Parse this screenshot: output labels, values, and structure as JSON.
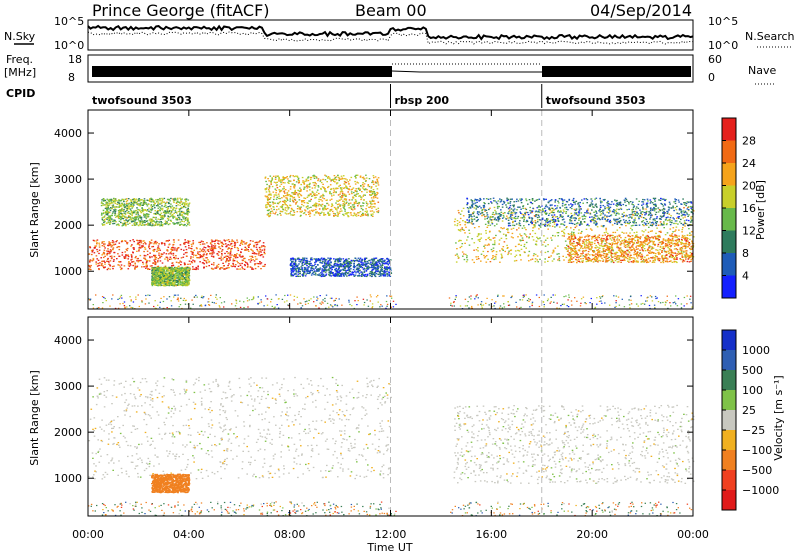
{
  "header": {
    "station": "Prince George (fitACF)",
    "beam": "Beam 00",
    "date": "04/Sep/2014"
  },
  "panel_labels": {
    "nsky": "N.Sky",
    "freq_line1": "Freq.",
    "freq_line2": "[MHz]",
    "cpid": "CPID",
    "nsearch": "N.Search",
    "nave": "Nave",
    "noise_ticks_left": [
      "10^5",
      "10^0"
    ],
    "noise_ticks_right": [
      "10^5",
      "10^0"
    ],
    "freq_ticks": [
      "18",
      "8"
    ],
    "nave_ticks": [
      "60",
      "0"
    ]
  },
  "cpid_segments": [
    {
      "label": "twofsound 3503",
      "start_hour": 0.0
    },
    {
      "label": "rbsp 200",
      "start_hour": 12.0
    },
    {
      "label": "twofsound 3503",
      "start_hour": 18.0
    }
  ],
  "axes": {
    "ylabel": "Slant Range [km]",
    "xlabel": "Time UT",
    "x_ticks": [
      "00:00",
      "04:00",
      "08:00",
      "12:00",
      "16:00",
      "20:00",
      "00:00"
    ],
    "y_ticks": [
      "1000",
      "2000",
      "3000",
      "4000"
    ]
  },
  "colorbars": {
    "power": {
      "title": "Power [dB]",
      "ticks": [
        "4",
        "8",
        "12",
        "16",
        "20",
        "24",
        "28"
      ],
      "colors": [
        "#1420ff",
        "#1e5cb8",
        "#2e7b5d",
        "#67b94a",
        "#c8cf2a",
        "#f5a31b",
        "#f16a14",
        "#e5201c"
      ]
    },
    "velocity": {
      "title": "Velocity [m s⁻¹]",
      "ticks": [
        "1000",
        "500",
        "100",
        "25",
        "−25",
        "−100",
        "−500",
        "−1000"
      ],
      "colors": [
        "#1530c9",
        "#2f5fb3",
        "#3a7f55",
        "#7fc248",
        "#c8c8c0",
        "#f0b020",
        "#f08020",
        "#f04020",
        "#e01a1a"
      ]
    }
  },
  "chart_data": [
    {
      "type": "heatmap",
      "title": "Power",
      "x_unit": "hours UT",
      "y_unit": "km",
      "xlim": [
        0,
        24
      ],
      "ylim": [
        180,
        4500
      ],
      "colorbar_range": [
        0,
        30
      ],
      "features": [
        {
          "hours": [
            0.0,
            7.0
          ],
          "range_km": [
            1050,
            1700
          ],
          "power_db": 26
        },
        {
          "hours": [
            7.0,
            11.5
          ],
          "range_km": [
            2200,
            3100
          ],
          "power_db": 18
        },
        {
          "hours": [
            0.5,
            4.0
          ],
          "range_km": [
            2000,
            2600
          ],
          "power_db": 14
        },
        {
          "hours": [
            2.5,
            4.0
          ],
          "range_km": [
            700,
            1100
          ],
          "power_db": 14
        },
        {
          "hours": [
            8.0,
            12.0
          ],
          "range_km": [
            900,
            1300
          ],
          "power_db": 6
        },
        {
          "hours": [
            14.5,
            24.0
          ],
          "range_km": [
            1200,
            2400
          ],
          "power_db": 18
        },
        {
          "hours": [
            19.0,
            24.0
          ],
          "range_km": [
            1200,
            1800
          ],
          "power_db": 22
        },
        {
          "hours": [
            15.0,
            24.0
          ],
          "range_km": [
            2000,
            2600
          ],
          "power_db": 8
        }
      ]
    },
    {
      "type": "heatmap",
      "title": "Velocity",
      "x_unit": "hours UT",
      "y_unit": "km",
      "xlim": [
        0,
        24
      ],
      "ylim": [
        180,
        4500
      ],
      "colorbar_range": [
        -1000,
        1000
      ],
      "features": [
        {
          "hours": [
            0.0,
            12.0
          ],
          "range_km": [
            1000,
            3200
          ],
          "velocity_ms": 0
        },
        {
          "hours": [
            2.5,
            4.0
          ],
          "range_km": [
            700,
            1100
          ],
          "velocity_ms": -400
        },
        {
          "hours": [
            14.5,
            24.0
          ],
          "range_km": [
            900,
            2600
          ],
          "velocity_ms": 0
        }
      ]
    }
  ]
}
